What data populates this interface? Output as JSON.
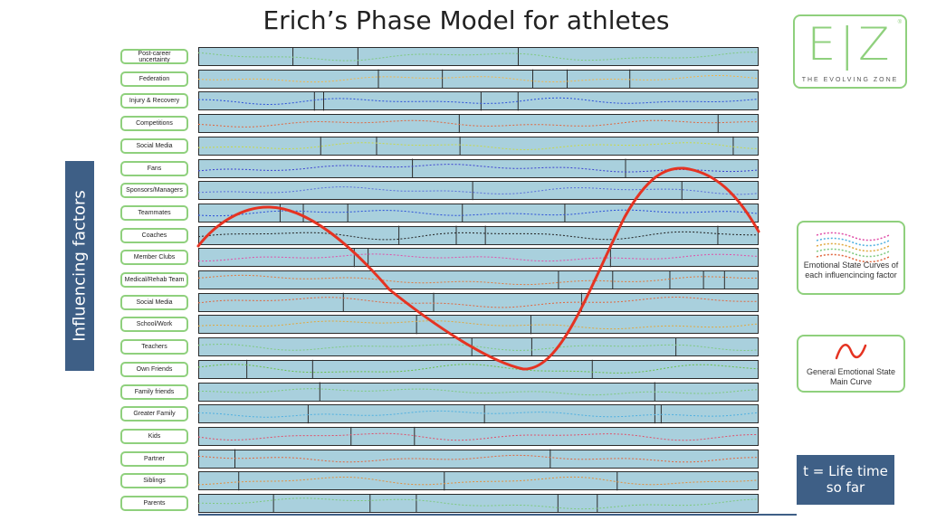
{
  "title": "Erich’s Phase Model for athletes",
  "side_label": "Influencing factors",
  "factors": [
    "Post-career uncertainty",
    "Federation",
    "Injury & Recovery",
    "Competitions",
    "Social Media",
    "Fans",
    "Sponsors/Managers",
    "Teammates",
    "Coaches",
    "Member Clubs",
    "Medical/Rehab Team",
    "Social Media",
    "School/Work",
    "Teachers",
    "Own Friends",
    "Family friends",
    "Greater Family",
    "Kids",
    "Partner",
    "Siblings",
    "Parents"
  ],
  "factor_curve_colors": [
    "#7fc97f",
    "#f0b44c",
    "#2b4fd8",
    "#e0673f",
    "#c7d84a",
    "#3b3fd0",
    "#5a6fd8",
    "#2b4fd8",
    "#222222",
    "#e04fa8",
    "#e07a3f",
    "#e0673f",
    "#e0a83f",
    "#7fc97f",
    "#6abf4b",
    "#7fc97f",
    "#4fb0e0",
    "#e04f6a",
    "#e0673f",
    "#e08f3f",
    "#7fc97f"
  ],
  "main_curve_color": "#e53322",
  "logo": {
    "letters": "E|Z",
    "tagline": "THE EVOLVING ZONE",
    "reg": "®"
  },
  "legend": {
    "factor_curves": "Emotional State Curves of each influencincing factor",
    "main_curve": "General Emotional State Main Curve"
  },
  "time_note": "t = Life time so far"
}
